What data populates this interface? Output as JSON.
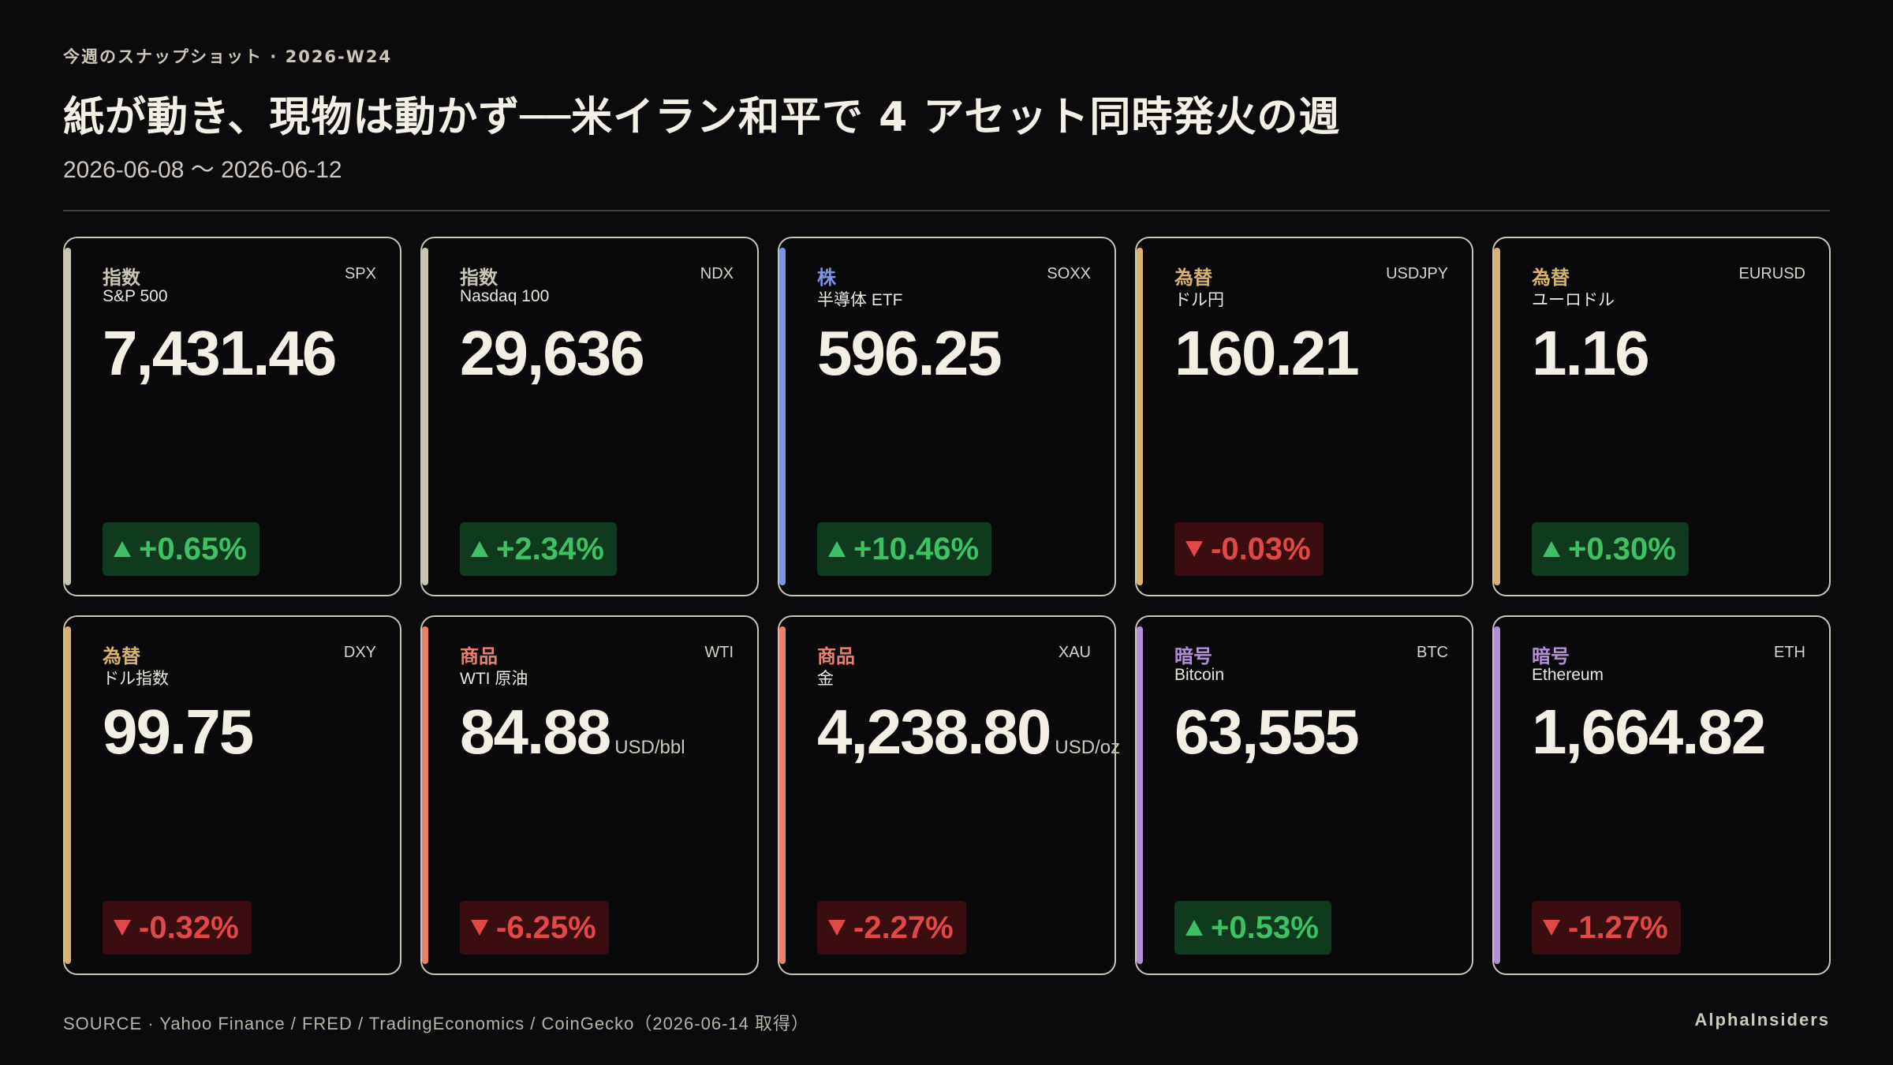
{
  "header": {
    "eyebrow": "今週のスナップショット · 2026-W24",
    "headline": "紙が動き、現物は動かず──米イラン和平で 4 アセット同時発火の週",
    "date_range": "2026-06-08 〜 2026-06-12"
  },
  "colors": {
    "index": "#c9c4b4",
    "stock": "#7b95e6",
    "fx": "#d6b46e",
    "commodity": "#e8806a",
    "crypto": "#b48ed8",
    "up": "#3ec165",
    "down": "#e24848"
  },
  "cards": [
    {
      "category": "指数",
      "category_color": "#c9c4b4",
      "name": "S&P 500",
      "ticker": "SPX",
      "value": "7,431.46",
      "unit": "",
      "change": "+0.65%",
      "direction": "up"
    },
    {
      "category": "指数",
      "category_color": "#c9c4b4",
      "name": "Nasdaq 100",
      "ticker": "NDX",
      "value": "29,636",
      "unit": "",
      "change": "+2.34%",
      "direction": "up"
    },
    {
      "category": "株",
      "category_color": "#7b95e6",
      "name": "半導体 ETF",
      "ticker": "SOXX",
      "value": "596.25",
      "unit": "",
      "change": "+10.46%",
      "direction": "up"
    },
    {
      "category": "為替",
      "category_color": "#d6b46e",
      "name": "ドル円",
      "ticker": "USDJPY",
      "value": "160.21",
      "unit": "",
      "change": "-0.03%",
      "direction": "down"
    },
    {
      "category": "為替",
      "category_color": "#d6b46e",
      "name": "ユーロドル",
      "ticker": "EURUSD",
      "value": "1.16",
      "unit": "",
      "change": "+0.30%",
      "direction": "up"
    },
    {
      "category": "為替",
      "category_color": "#d6b46e",
      "name": "ドル指数",
      "ticker": "DXY",
      "value": "99.75",
      "unit": "",
      "change": "-0.32%",
      "direction": "down"
    },
    {
      "category": "商品",
      "category_color": "#e8806a",
      "name": "WTI 原油",
      "ticker": "WTI",
      "value": "84.88",
      "unit": "USD/bbl",
      "change": "-6.25%",
      "direction": "down"
    },
    {
      "category": "商品",
      "category_color": "#e8806a",
      "name": "金",
      "ticker": "XAU",
      "value": "4,238.80",
      "unit": "USD/oz",
      "change": "-2.27%",
      "direction": "down"
    },
    {
      "category": "暗号",
      "category_color": "#b48ed8",
      "name": "Bitcoin",
      "ticker": "BTC",
      "value": "63,555",
      "unit": "",
      "change": "+0.53%",
      "direction": "up"
    },
    {
      "category": "暗号",
      "category_color": "#b48ed8",
      "name": "Ethereum",
      "ticker": "ETH",
      "value": "1,664.82",
      "unit": "",
      "change": "-1.27%",
      "direction": "down"
    }
  ],
  "footer": {
    "source": "SOURCE · Yahoo Finance / FRED / TradingEconomics / CoinGecko（2026-06-14 取得）",
    "brand": "AlphaInsiders"
  }
}
